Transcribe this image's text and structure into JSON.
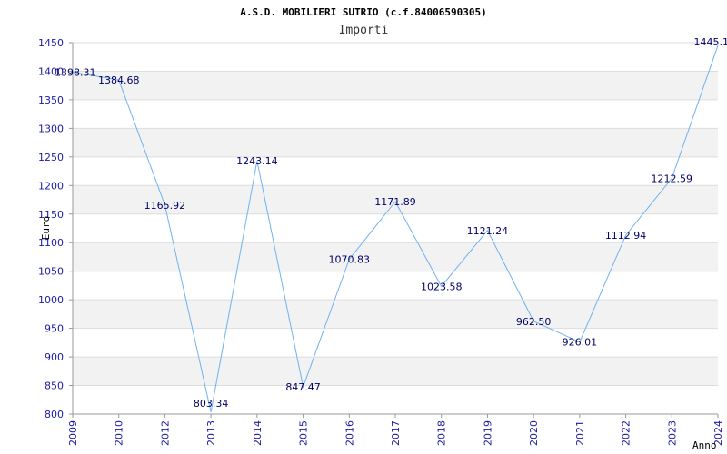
{
  "chart_data": {
    "type": "line",
    "title": "A.S.D. MOBILIERI SUTRIO (c.f.84006590305)",
    "subtitle": "Importi",
    "xlabel": "Anno",
    "ylabel": "Euro",
    "categories": [
      "2009",
      "2010",
      "2012",
      "2013",
      "2014",
      "2015",
      "2016",
      "2017",
      "2018",
      "2019",
      "2020",
      "2021",
      "2022",
      "2023",
      "2024"
    ],
    "series": [
      {
        "values": [
          1398.31,
          1384.68,
          1165.92,
          803.34,
          1243.14,
          847.47,
          1070.83,
          1171.89,
          1023.58,
          1121.24,
          962.5,
          926.01,
          1112.94,
          1212.59,
          1445.1
        ],
        "labels": [
          "1398.31",
          "1384.68",
          "1165.92",
          "803.34",
          "1243.14",
          "847.47",
          "1070.83",
          "1171.89",
          "1023.58",
          "1121.24",
          "962.50",
          "926.01",
          "1112.94",
          "1212.59",
          "1445.1"
        ]
      }
    ],
    "ylim": [
      800,
      1450
    ],
    "yticks": [
      800,
      850,
      900,
      950,
      1000,
      1050,
      1100,
      1150,
      1200,
      1250,
      1300,
      1350,
      1400,
      1450
    ],
    "grid": true,
    "line_color": "#6fb1ef",
    "band_color": "#f2f2f2",
    "tick_color": "#1a1aa6"
  }
}
